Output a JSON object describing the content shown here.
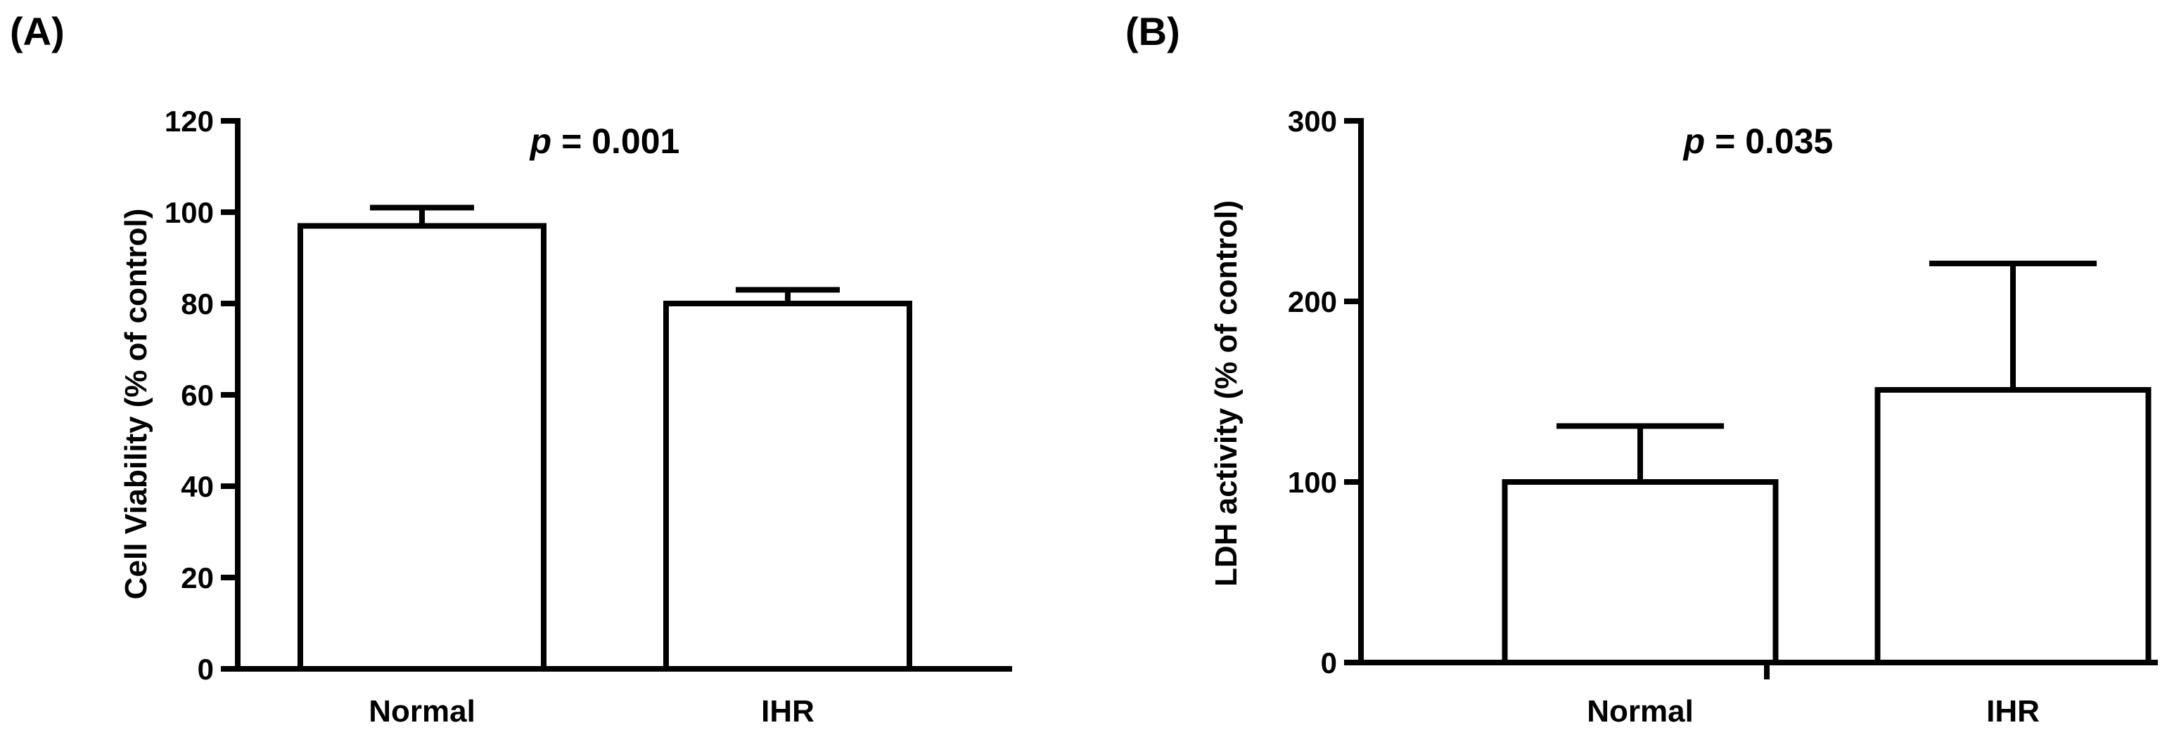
{
  "chart_data": [
    {
      "type": "bar",
      "panel_label": "(A)",
      "categories": [
        "Normal",
        "IHR"
      ],
      "values": [
        97,
        80
      ],
      "error_upper": [
        101,
        83
      ],
      "ylabel": "Cell Viability (% of control)",
      "xlabel": "",
      "ylim": [
        0,
        120
      ],
      "yticks": [
        "0",
        "20",
        "40",
        "60",
        "80",
        "100",
        "120"
      ],
      "annotation": {
        "p_symbol": "p",
        "p_text": " = 0.001"
      },
      "bar_color": "#ffffff",
      "edge_color": "#000000"
    },
    {
      "type": "bar",
      "panel_label": "(B)",
      "categories": [
        "Normal",
        "IHR"
      ],
      "values": [
        100,
        151
      ],
      "error_upper": [
        131,
        221
      ],
      "ylabel": "LDH activity (% of control)",
      "xlabel": "",
      "ylim": [
        0,
        300
      ],
      "yticks": [
        "0",
        "100",
        "200",
        "300"
      ],
      "annotation": {
        "p_symbol": "p",
        "p_text": " = 0.035"
      },
      "bar_color": "#ffffff",
      "edge_color": "#000000"
    }
  ]
}
